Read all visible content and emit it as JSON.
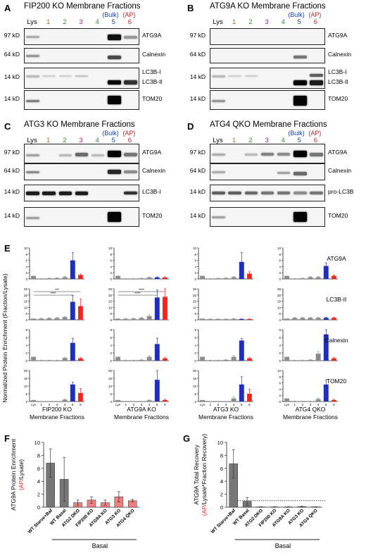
{
  "panel_a": {
    "letter": "A",
    "title": "FIP200 KO Membrane Fractions",
    "lanes": [
      "Lys",
      "1",
      "2",
      "3",
      "4",
      "5",
      "6"
    ],
    "bulk": "(Bulk)",
    "ap": "(AP)",
    "rows": [
      {
        "kd": "97 kD",
        "protein": "ATG9A"
      },
      {
        "kd": "64 kD",
        "protein": "Calnexin"
      },
      {
        "kd": "14 kD",
        "protein": "LC3B-I",
        "protein2": "LC3B-II"
      },
      {
        "kd": "14 kD",
        "protein": "TOM20"
      }
    ]
  },
  "panel_b": {
    "letter": "B",
    "title": "ATG9A KO Membrane Fractions",
    "lanes": [
      "Lys",
      "1",
      "2",
      "3",
      "4",
      "5",
      "6"
    ],
    "bulk": "(Bulk)",
    "ap": "(AP)",
    "rows": [
      {
        "kd": "97 kD",
        "protein": "ATG9A"
      },
      {
        "kd": "64 kD",
        "protein": "Calnexin"
      },
      {
        "kd": "14 kD",
        "protein": "LC3B-I",
        "protein2": "LC3B-II"
      },
      {
        "kd": "14 kD",
        "protein": "TOM20"
      }
    ]
  },
  "panel_c": {
    "letter": "C",
    "title": "ATG3 KO Membrane Fractions",
    "lanes": [
      "Lys",
      "1",
      "2",
      "3",
      "4",
      "5",
      "6"
    ],
    "bulk": "(Bulk)",
    "ap": "(AP)",
    "rows": [
      {
        "kd": "97 kD",
        "protein": "ATG9A"
      },
      {
        "kd": "64 kD",
        "protein": "Calnexin"
      },
      {
        "kd": "14 kD",
        "protein": "LC3B-I"
      },
      {
        "kd": "14 kD",
        "protein": "TOM20"
      }
    ]
  },
  "panel_d": {
    "letter": "D",
    "title": "ATG4 QKO Membrane Fractions",
    "lanes": [
      "Lys",
      "1",
      "2",
      "3",
      "4",
      "5",
      "6"
    ],
    "bulk": "(Bulk)",
    "ap": "(AP)",
    "rows": [
      {
        "kd": "97 kD",
        "protein": "ATG9A"
      },
      {
        "kd": "64 kD",
        "protein": "Calnexin"
      },
      {
        "kd": "14 kD",
        "protein": "pro-LC3B"
      },
      {
        "kd": "14 kD",
        "protein": "TOM20"
      }
    ]
  },
  "panel_e": {
    "letter": "E",
    "ylabel": "Normalized Protein Enrichment (Fraction/Lysate)",
    "row_labels": [
      "ATG9A",
      "LC3B-II",
      "Calnexin",
      "TOM20"
    ],
    "x_tick_labels": [
      "Lys",
      "1",
      "2",
      "3",
      "4",
      "5",
      "6"
    ],
    "col_labels": [
      {
        "line1": "FIP200 KO",
        "line2": "Membrane Fractions"
      },
      {
        "line1": "ATG9A KO",
        "line2": "Membrane Fractions"
      },
      {
        "line1": "ATG3 KO",
        "line2": "Membrane Fractions"
      },
      {
        "line1": "ATG4 QKO",
        "line2": "Membrane Fractions"
      }
    ],
    "sig_labels": [
      "***",
      "****",
      "****",
      "****"
    ]
  },
  "panel_f": {
    "letter": "F",
    "ylabel_line1": "ATG9A Protein Enrichment",
    "ylabel_ap": "(AP",
    "ylabel_rest": "/Lysate)",
    "group_label": "Basal"
  },
  "panel_g": {
    "letter": "G",
    "ylabel_line1": "ATG9A Total Recovery",
    "ylabel_ap": "(AP",
    "ylabel_rest": "/Lysate*Fraction Recovery)",
    "group_label": "Basal"
  },
  "colors": {
    "grey": "#8c8c8c",
    "blue": "#1f2fb8",
    "red": "#ff2020",
    "pink": "#f08080",
    "darkgrey": "#777777"
  },
  "chart_data": [
    {
      "type": "bar",
      "title": "",
      "xlabel": "FIP200 KO Membrane Fractions",
      "ylabel": "Normalized Protein Enrichment (Fraction/Lysate)",
      "categories": [
        "Lys",
        "1",
        "2",
        "3",
        "4",
        "5",
        "6"
      ],
      "panels": [
        {
          "name": "ATG9A",
          "ylim": [
            0,
            10
          ],
          "yticks": [
            0,
            2,
            4,
            6,
            8,
            10
          ],
          "values": [
            1,
            0.1,
            0.2,
            0.3,
            0.6,
            6.0,
            1.3
          ],
          "errors": [
            0,
            0.05,
            0.1,
            0.1,
            0.2,
            2.5,
            0.3
          ]
        },
        {
          "name": "LC3B-II",
          "ylim": [
            0,
            25
          ],
          "yticks": [
            0,
            5,
            10,
            15,
            20,
            25
          ],
          "values": [
            1,
            1,
            1.3,
            1.5,
            2.2,
            14.5,
            11
          ],
          "errors": [
            0,
            0.3,
            0.3,
            0.4,
            0.5,
            5,
            6
          ]
        },
        {
          "name": "Calnexin",
          "ylim": [
            0,
            8
          ],
          "yticks": [
            0,
            2,
            4,
            6,
            8
          ],
          "values": [
            1,
            0.1,
            0.1,
            0.1,
            0.7,
            4.6,
            0.6
          ],
          "errors": [
            0,
            0.05,
            0.05,
            0.05,
            0.2,
            1.2,
            0.2
          ]
        },
        {
          "name": "TOM20",
          "ylim": [
            0,
            20
          ],
          "yticks": [
            0,
            5,
            10,
            15,
            20
          ],
          "values": [
            1,
            0.1,
            0.1,
            0.1,
            1.2,
            11,
            5.5
          ],
          "errors": [
            0,
            0.05,
            0.05,
            0.05,
            0.3,
            1.5,
            3
          ]
        }
      ]
    },
    {
      "type": "bar",
      "title": "",
      "xlabel": "ATG9A KO Membrane Fractions",
      "categories": [
        "Lys",
        "1",
        "2",
        "3",
        "4",
        "5",
        "6"
      ],
      "panels": [
        {
          "name": "ATG9A",
          "ylim": [
            0,
            10
          ],
          "yticks": [
            0,
            2,
            4,
            6,
            8,
            10
          ],
          "values": [
            1,
            0.1,
            0.1,
            0.2,
            0.5,
            0.5,
            0.5
          ],
          "errors": [
            0,
            0.05,
            0.05,
            0.1,
            0.2,
            0.2,
            0.2
          ]
        },
        {
          "name": "LC3B-II",
          "ylim": [
            0,
            25
          ],
          "yticks": [
            0,
            5,
            10,
            15,
            20,
            25
          ],
          "values": [
            1,
            0.8,
            1,
            1.5,
            3,
            18,
            18.5
          ],
          "errors": [
            0,
            0.3,
            0.3,
            0.4,
            1,
            6,
            7
          ]
        },
        {
          "name": "Calnexin",
          "ylim": [
            0,
            8
          ],
          "yticks": [
            0,
            2,
            4,
            6,
            8
          ],
          "values": [
            1,
            0.1,
            0.1,
            0.2,
            1,
            4.3,
            0.6
          ],
          "errors": [
            0,
            0.05,
            0.05,
            0.1,
            0.3,
            1.5,
            0.2
          ]
        },
        {
          "name": "TOM20",
          "ylim": [
            0,
            20
          ],
          "yticks": [
            0,
            5,
            10,
            15,
            20
          ],
          "values": [
            1,
            0.1,
            0.1,
            0.1,
            0.8,
            14,
            1
          ],
          "errors": [
            0,
            0.05,
            0.05,
            0.05,
            0.2,
            6,
            0.5
          ]
        }
      ]
    },
    {
      "type": "bar",
      "title": "",
      "xlabel": "ATG3 KO Membrane Fractions",
      "categories": [
        "Lys",
        "1",
        "2",
        "3",
        "4",
        "5",
        "6"
      ],
      "panels": [
        {
          "name": "ATG9A",
          "ylim": [
            0,
            10
          ],
          "yticks": [
            0,
            2,
            4,
            6,
            8,
            10
          ],
          "values": [
            1,
            0.1,
            0.2,
            0.3,
            0.6,
            5.5,
            1.7
          ],
          "errors": [
            0,
            0.05,
            0.1,
            0.1,
            0.2,
            3,
            0.6
          ]
        },
        {
          "name": "LC3B-II",
          "ylim": [
            0,
            25
          ],
          "yticks": [
            0,
            5,
            10,
            15,
            20,
            25
          ],
          "values": [
            1,
            0.6,
            0.6,
            0.6,
            0.8,
            0.6,
            0.6
          ],
          "errors": [
            0,
            0.2,
            0.2,
            0.2,
            0.3,
            0.2,
            0.2
          ]
        },
        {
          "name": "Calnexin",
          "ylim": [
            0,
            8
          ],
          "yticks": [
            0,
            2,
            4,
            6,
            8
          ],
          "values": [
            1,
            0.1,
            0.1,
            0.2,
            1,
            5.2,
            0.6
          ],
          "errors": [
            0,
            0.05,
            0.05,
            0.1,
            0.3,
            0.5,
            0.2
          ]
        },
        {
          "name": "TOM20",
          "ylim": [
            0,
            20
          ],
          "yticks": [
            0,
            5,
            10,
            15,
            20
          ],
          "values": [
            1,
            0.1,
            0.1,
            0.1,
            2,
            11,
            5
          ],
          "errors": [
            0,
            0.05,
            0.05,
            0.05,
            1,
            5,
            3
          ]
        }
      ]
    },
    {
      "type": "bar",
      "title": "",
      "xlabel": "ATG4 QKO Membrane Fractions",
      "categories": [
        "Lys",
        "1",
        "2",
        "3",
        "4",
        "5",
        "6"
      ],
      "panels": [
        {
          "name": "ATG9A",
          "ylim": [
            0,
            10
          ],
          "yticks": [
            0,
            2,
            4,
            6,
            8,
            10
          ],
          "values": [
            1,
            0.1,
            0.2,
            0.6,
            0.6,
            4.2,
            1
          ],
          "errors": [
            0,
            0.05,
            0.1,
            0.2,
            0.2,
            1,
            0.3
          ]
        },
        {
          "name": "LC3B-II",
          "ylim": [
            0,
            25
          ],
          "yticks": [
            0,
            5,
            10,
            15,
            20,
            25
          ],
          "values": [
            1,
            1.6,
            1.6,
            1.6,
            1.6,
            1.6,
            1.6
          ],
          "errors": [
            0,
            0.4,
            0.4,
            0.4,
            0.4,
            0.4,
            0.4
          ]
        },
        {
          "name": "Calnexin",
          "ylim": [
            0,
            8
          ],
          "yticks": [
            0,
            2,
            4,
            6,
            8
          ],
          "values": [
            1,
            0.1,
            0.1,
            0.2,
            1.8,
            6.8,
            0.6
          ],
          "errors": [
            0,
            0.05,
            0.05,
            0.1,
            0.5,
            3,
            0.2
          ]
        },
        {
          "name": "TOM20",
          "ylim": [
            0,
            10
          ],
          "yticks": [
            0,
            2,
            4,
            6,
            8,
            10
          ],
          "values": [
            1,
            0.1,
            0.1,
            0.1,
            0.8,
            5.5,
            0.5
          ],
          "errors": [
            0,
            0.05,
            0.05,
            0.05,
            0.3,
            1.5,
            0.2
          ]
        }
      ]
    },
    {
      "type": "bar",
      "title": "",
      "xlabel": "Basal",
      "ylabel": "ATG9A Protein Enrichment (AP/Lysate)",
      "categories": [
        "WT Starve+Baf",
        "WT Basal",
        "ATG2 DKO",
        "FIP200 KO",
        "ATG9A KO",
        "ATG3 KO",
        "ATG4 QKO"
      ],
      "values": [
        6.8,
        4.3,
        0.7,
        1.1,
        0.7,
        1.6,
        1.0
      ],
      "errors": [
        2.2,
        3.4,
        0.4,
        0.5,
        0.4,
        0.8,
        0.2
      ],
      "ylim": [
        0,
        10
      ],
      "yticks": [
        0,
        2,
        4,
        6,
        8,
        10
      ]
    },
    {
      "type": "bar",
      "title": "",
      "xlabel": "Basal",
      "ylabel": "ATG9A Total Recovery (AP/Lysate*Fraction Recovery)",
      "categories": [
        "WT Starve+Baf",
        "WT Basal",
        "ATG2 DKO",
        "FIP200 KO",
        "ATG9A KO",
        "ATG3 KO",
        "ATG4 QKO"
      ],
      "values": [
        6.7,
        0.9,
        0.05,
        0.05,
        0.05,
        0.1,
        0.05
      ],
      "errors": [
        2.2,
        0.6,
        0.02,
        0.02,
        0.02,
        0.05,
        0.02
      ],
      "ylim": [
        0,
        10
      ],
      "yticks": [
        0,
        2,
        4,
        6,
        8,
        10
      ],
      "reference_line": 1
    }
  ]
}
